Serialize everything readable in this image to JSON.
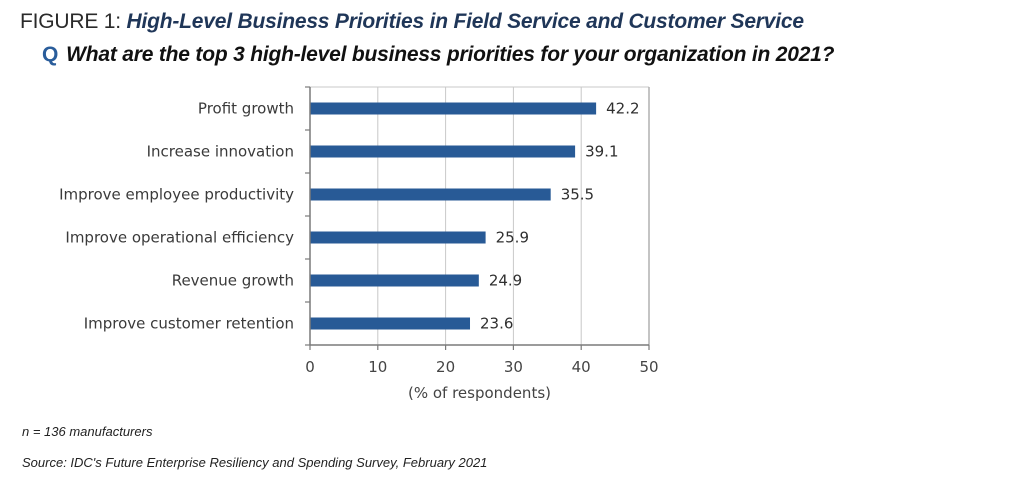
{
  "figure": {
    "label": "FIGURE 1:",
    "title": "High-Level Business Priorities in Field Service and Customer Service",
    "question_marker": "Q",
    "question": "What are the top 3 high-level business priorities for your organization in 2021?"
  },
  "colors": {
    "bar": "#285a96",
    "title": "#1f3658",
    "question_marker": "#2a5d9b",
    "grid": "#c8c8c8",
    "axis": "#7a7a7a"
  },
  "chart_data": {
    "type": "bar",
    "orientation": "horizontal",
    "title": "High-Level Business Priorities in Field Service and Customer Service",
    "categories": [
      "Profit growth",
      "Increase innovation",
      "Improve employee productivity",
      "Improve operational efficiency",
      "Revenue growth",
      "Improve customer retention"
    ],
    "values": [
      42.2,
      39.1,
      35.5,
      25.9,
      24.9,
      23.6
    ],
    "value_labels": [
      "42.2",
      "39.1",
      "35.5",
      "25.9",
      "24.9",
      "23.6"
    ],
    "xlabel": "(% of respondents)",
    "ylabel": "",
    "xlim": [
      0,
      50
    ],
    "xticks": [
      0,
      10,
      20,
      30,
      40,
      50
    ],
    "xtick_labels": [
      "0",
      "10",
      "20",
      "30",
      "40",
      "50"
    ],
    "grid": true,
    "legend": "none"
  },
  "notes": {
    "sample": "n = 136 manufacturers",
    "source": "Source: IDC's Future Enterprise Resiliency and Spending Survey, February 2021"
  }
}
